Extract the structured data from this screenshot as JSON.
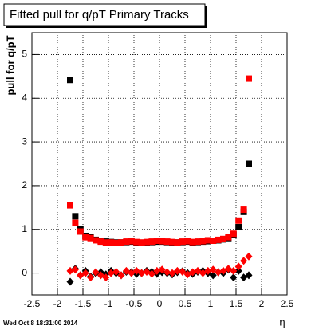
{
  "chart_data": {
    "type": "scatter",
    "title": "Fitted pull for q/pT  Primary Tracks",
    "ylabel": "pull for q/pT",
    "xlabel": "η",
    "footer": "Wed Oct  8 18:31:00 2014",
    "xlim": [
      -2.5,
      2.5
    ],
    "xticks": [
      -2.5,
      -2,
      -1.5,
      -1,
      -0.5,
      0,
      0.5,
      1,
      1.5,
      2,
      2.5
    ],
    "ylim": [
      -0.5,
      5.5
    ],
    "yticks": [
      0,
      1,
      2,
      3,
      4,
      5
    ],
    "grid": true,
    "x": [
      -1.75,
      -1.65,
      -1.55,
      -1.45,
      -1.35,
      -1.25,
      -1.15,
      -1.05,
      -0.95,
      -0.85,
      -0.75,
      -0.65,
      -0.55,
      -0.45,
      -0.35,
      -0.25,
      -0.15,
      -0.05,
      0.05,
      0.15,
      0.25,
      0.35,
      0.45,
      0.55,
      0.65,
      0.75,
      0.85,
      0.95,
      1.05,
      1.15,
      1.25,
      1.35,
      1.45,
      1.55,
      1.65,
      1.75
    ],
    "series": [
      {
        "color": "#000000",
        "marker": "square",
        "values": [
          4.42,
          1.3,
          1.0,
          0.85,
          0.82,
          0.76,
          0.74,
          0.72,
          0.71,
          0.7,
          0.7,
          0.71,
          0.72,
          0.7,
          0.69,
          0.7,
          0.71,
          0.72,
          0.72,
          0.71,
          0.7,
          0.7,
          0.71,
          0.72,
          0.7,
          0.71,
          0.72,
          0.73,
          0.74,
          0.75,
          0.77,
          0.8,
          0.88,
          1.05,
          1.4,
          2.5
        ]
      },
      {
        "color": "#000000",
        "marker": "diamond",
        "values": [
          -0.2,
          0.1,
          -0.05,
          0.05,
          -0.08,
          0.0,
          0.02,
          -0.03,
          0.05,
          0.0,
          -0.05,
          0.03,
          0.02,
          -0.02,
          0.0,
          0.05,
          0.03,
          -0.02,
          0.02,
          0.0,
          -0.03,
          0.02,
          0.04,
          0.0,
          -0.02,
          0.03,
          0.05,
          0.0,
          -0.05,
          0.02,
          0.0,
          0.08,
          -0.1,
          0.05,
          -0.1,
          -0.05
        ]
      },
      {
        "color": "#ff0000",
        "marker": "square",
        "values": [
          1.55,
          1.15,
          0.95,
          0.82,
          0.8,
          0.75,
          0.72,
          0.7,
          0.7,
          0.69,
          0.7,
          0.72,
          0.73,
          0.71,
          0.7,
          0.71,
          0.72,
          0.74,
          0.73,
          0.72,
          0.71,
          0.7,
          0.72,
          0.73,
          0.71,
          0.72,
          0.73,
          0.75,
          0.74,
          0.76,
          0.78,
          0.82,
          0.9,
          1.2,
          1.45,
          4.45
        ]
      },
      {
        "color": "#ff0000",
        "marker": "diamond",
        "values": [
          0.05,
          0.08,
          -0.05,
          0.0,
          -0.1,
          0.02,
          -0.05,
          -0.1,
          0.0,
          0.03,
          -0.05,
          0.05,
          0.0,
          0.05,
          0.0,
          0.03,
          -0.02,
          0.05,
          0.08,
          0.02,
          0.0,
          0.05,
          0.03,
          -0.03,
          0.02,
          0.05,
          0.0,
          0.05,
          0.08,
          0.02,
          0.05,
          0.1,
          0.05,
          0.15,
          0.28,
          0.38
        ]
      }
    ]
  }
}
